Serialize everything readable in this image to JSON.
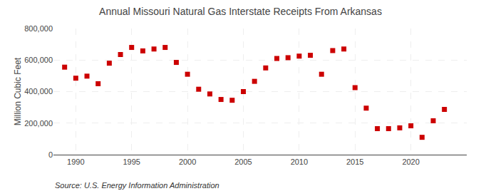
{
  "chart_data": {
    "type": "scatter",
    "title": "Annual Missouri Natural Gas Interstate Receipts From Arkansas",
    "y_label": "Million Cubic Feet",
    "annotations": [
      "Source: U.S. Energy Information Administration"
    ],
    "x": [
      1989,
      1990,
      1991,
      1992,
      1993,
      1994,
      1995,
      1996,
      1997,
      1998,
      1999,
      2000,
      2001,
      2002,
      2003,
      2004,
      2005,
      2006,
      2007,
      2008,
      2009,
      2010,
      2011,
      2012,
      2013,
      2014,
      2015,
      2016,
      2017,
      2018,
      2019,
      2020,
      2021,
      2022,
      2023
    ],
    "values": [
      555000,
      485000,
      498000,
      450000,
      580000,
      635000,
      680000,
      658000,
      670000,
      680000,
      585000,
      510000,
      415000,
      385000,
      350000,
      345000,
      400000,
      465000,
      550000,
      610000,
      615000,
      625000,
      630000,
      510000,
      660000,
      670000,
      425000,
      295000,
      165000,
      165000,
      170000,
      183000,
      110000,
      215000,
      287000
    ],
    "color": "#cc0000",
    "marker": "square",
    "xlim": [
      1988,
      2025
    ],
    "xticks": [
      1990,
      1995,
      2000,
      2005,
      2010,
      2015,
      2020
    ],
    "ylim": [
      0,
      800000
    ],
    "yticks": [
      0,
      {
        "value": 200000,
        "label": "200,000"
      },
      {
        "value": 400000,
        "label": "400,000"
      },
      {
        "value": 600000,
        "label": "600,000"
      },
      {
        "value": 800000,
        "label": "800,000"
      }
    ],
    "grid": true
  }
}
